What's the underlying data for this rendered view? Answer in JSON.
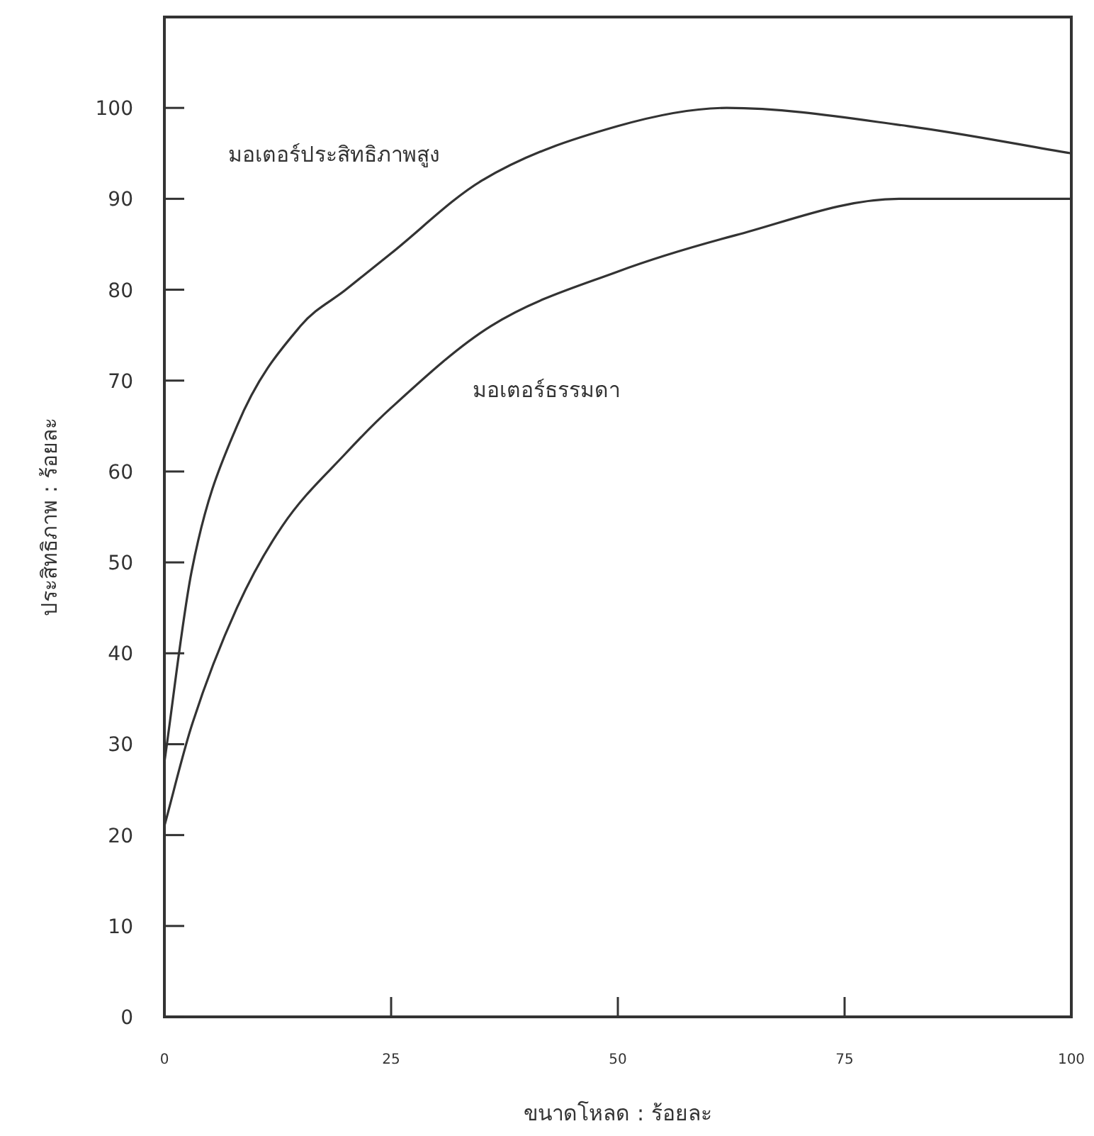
{
  "chart_data": {
    "type": "line",
    "xlabel": "ขนาดโหลด : ร้อยละ",
    "ylabel": "ประสิทธิภาพ : ร้อยละ",
    "xlim": [
      0,
      100
    ],
    "xticks": [
      0,
      25,
      50,
      75,
      100
    ],
    "ylim": [
      0,
      110
    ],
    "yticks": [
      0,
      10,
      20,
      30,
      40,
      50,
      60,
      70,
      80,
      90,
      100
    ],
    "grid": false,
    "legend": false,
    "marker": "none",
    "line_style": "solid",
    "series": [
      {
        "name": "มอเตอร์ประสิทธิภาพสูง",
        "color": "#333333",
        "x": [
          0,
          3,
          8,
          15,
          20,
          25,
          35,
          50,
          62,
          82,
          100
        ],
        "values": [
          28,
          49,
          65,
          76,
          80,
          84,
          92,
          98,
          100,
          98,
          95
        ]
      },
      {
        "name": "มอเตอร์ธรรมดา",
        "color": "#333333",
        "x": [
          0,
          3,
          8,
          13,
          20,
          25,
          36,
          50,
          63,
          81,
          100
        ],
        "values": [
          21,
          32,
          45,
          54,
          62,
          67,
          76,
          82,
          86,
          90,
          90
        ]
      }
    ]
  }
}
